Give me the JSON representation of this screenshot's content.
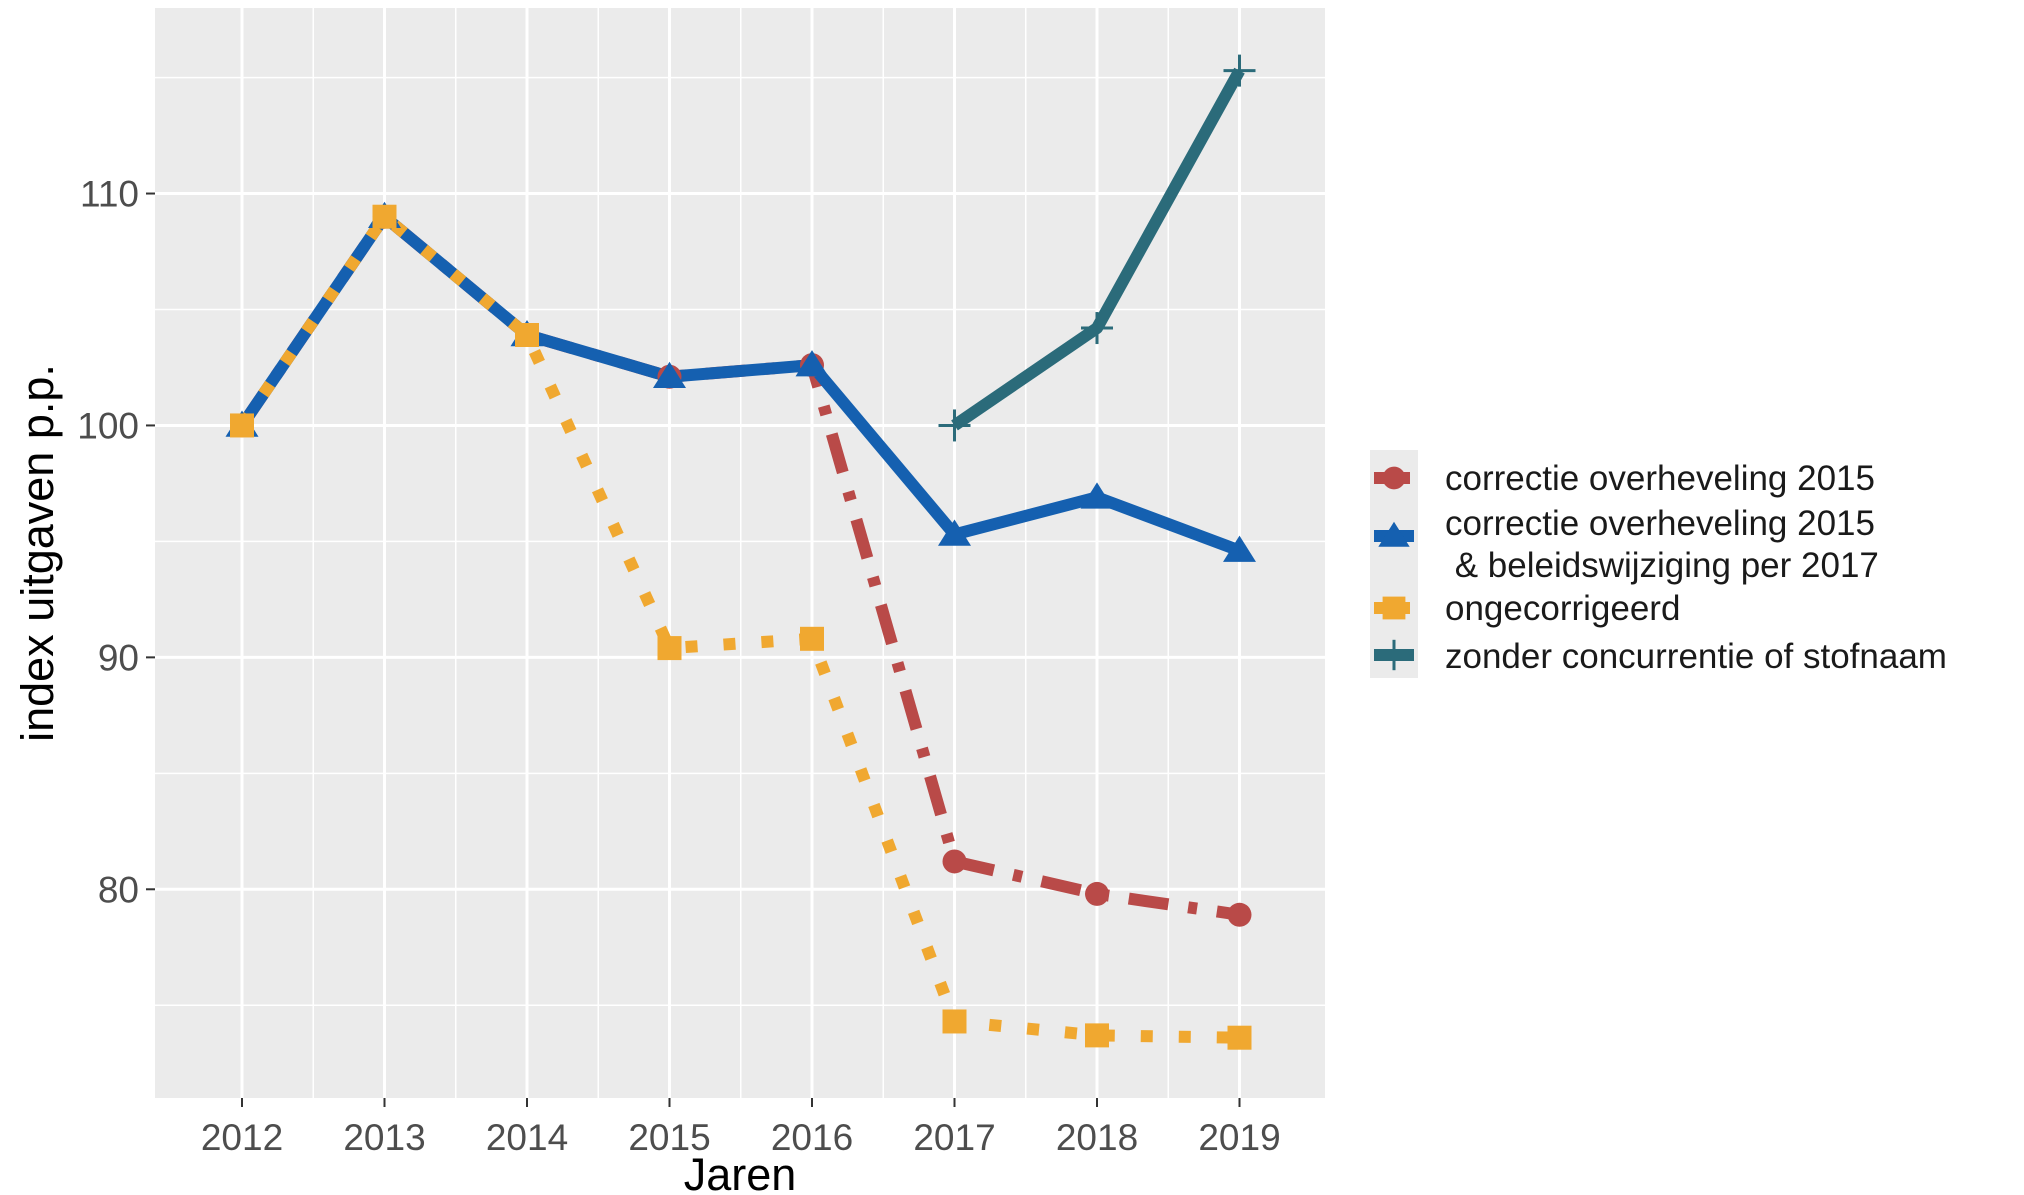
{
  "chart_data": {
    "type": "line",
    "title": "",
    "xlabel": "Jaren",
    "ylabel": "index uitgaven p.p.",
    "x": [
      "2012",
      "2013",
      "2014",
      "2015",
      "2016",
      "2017",
      "2018",
      "2019"
    ],
    "ylim": [
      71,
      118
    ],
    "yticks": [
      80,
      90,
      100,
      110
    ],
    "yticklabels": [
      "80",
      "90",
      "100",
      "110"
    ],
    "grid": true,
    "legend_position": "right",
    "background": "#EBEBEB",
    "series": [
      {
        "name": "correctie overheveling 2015",
        "color": "#B94A48",
        "marker": "circle",
        "line_style": "dashdot",
        "values": [
          100,
          109,
          103.9,
          102.1,
          102.6,
          81.2,
          79.8,
          78.9
        ]
      },
      {
        "name": "correctie overheveling 2015\n & beleidswijziging per 2017",
        "name_lines": [
          "correctie overheveling 2015",
          " & beleidswijziging per 2017"
        ],
        "color": "#1560B0",
        "marker": "triangle",
        "line_style": "solid",
        "values": [
          100,
          109,
          103.9,
          102.1,
          102.6,
          95.3,
          96.9,
          94.6
        ]
      },
      {
        "name": "ongecorrigeerd",
        "color": "#F0A830",
        "marker": "square",
        "line_style": "dotted",
        "values": [
          100,
          109,
          103.9,
          90.4,
          90.8,
          74.3,
          73.7,
          73.6
        ]
      },
      {
        "name": "zonder concurrentie of stofnaam",
        "color": "#2B6B7A",
        "marker": "plus",
        "line_style": "solid",
        "values": [
          null,
          null,
          null,
          null,
          null,
          100,
          104.2,
          115.3
        ]
      }
    ]
  }
}
